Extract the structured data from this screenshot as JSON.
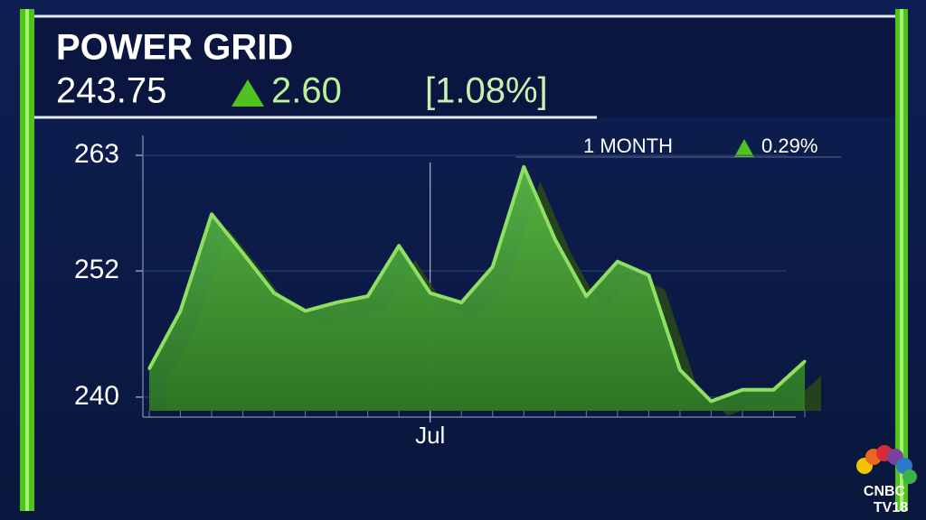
{
  "header": {
    "title": "POWER GRID",
    "price": "243.75",
    "change": "2.60",
    "change_pct": "[1.08%]"
  },
  "logo": {
    "line1": "CNBC",
    "line2": "TV18"
  },
  "chart_data": {
    "type": "area",
    "annotation": {
      "label": "1 MONTH",
      "change": "0.29%"
    },
    "categories": [
      null,
      null,
      null,
      null,
      null,
      null,
      null,
      null,
      null,
      "Jul",
      null,
      null,
      null,
      null,
      null,
      null,
      null,
      null,
      null,
      null,
      null,
      null
    ],
    "values": [
      242.7,
      248.2,
      257.4,
      253.7,
      249.9,
      248.2,
      249.0,
      249.6,
      254.4,
      249.9,
      249.0,
      252.4,
      261.9,
      255.0,
      249.6,
      252.9,
      251.6,
      242.6,
      239.6,
      240.7,
      240.7,
      243.4
    ],
    "color": "#4ea83a",
    "line_color": "#8ee063",
    "ylim": [
      238.7,
      264.9
    ],
    "yticks": [
      240,
      252,
      263
    ],
    "grid": true
  }
}
